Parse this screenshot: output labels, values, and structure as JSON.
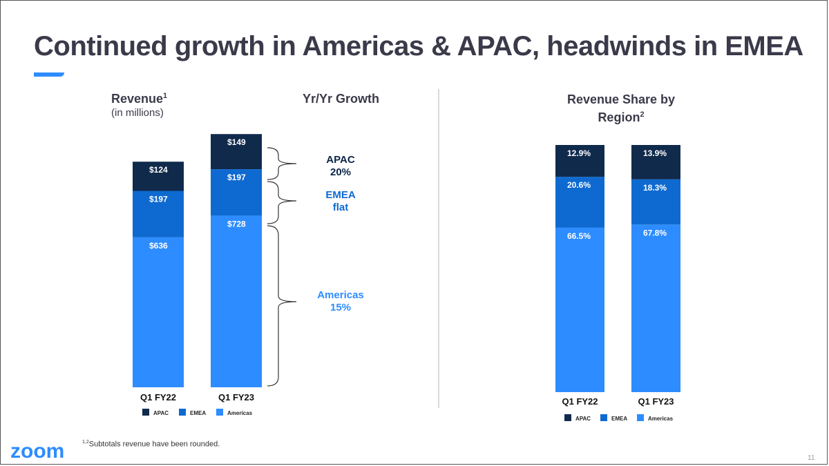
{
  "slide": {
    "title": "Continued growth in Americas & APAC, headwinds in EMEA",
    "page_number": "11",
    "logo_text": "zoom",
    "footnote_sup": "1,2",
    "footnote_text": "Subtotals revenue have been rounded."
  },
  "colors": {
    "apac": "#102a4c",
    "emea": "#0e6ad1",
    "americas": "#2d8cff",
    "growth_dark": "#0b2447",
    "growth_mid": "#0e6ad1",
    "growth_light": "#2d8cff"
  },
  "headers": {
    "revenue": "Revenue",
    "revenue_sup": "1",
    "revenue_sub": "(in millions)",
    "growth": "Yr/Yr Growth",
    "share_line1": "Revenue Share by",
    "share_line2": "Region",
    "share_sup": "2"
  },
  "growth_labels": {
    "apac_name": "APAC",
    "apac_value": "20%",
    "emea_name": "EMEA",
    "emea_value": "flat",
    "americas_name": "Americas",
    "americas_value": "15%"
  },
  "chart_data": [
    {
      "type": "bar",
      "stacked": true,
      "title": "Revenue (in millions)",
      "categories": [
        "Q1 FY22",
        "Q1 FY23"
      ],
      "series": [
        {
          "name": "Americas",
          "values": [
            636,
            728
          ],
          "labels": [
            "$636",
            "$728"
          ]
        },
        {
          "name": "EMEA",
          "values": [
            197,
            197
          ],
          "labels": [
            "$197",
            "$197"
          ]
        },
        {
          "name": "APAC",
          "values": [
            124,
            149
          ],
          "labels": [
            "$124",
            "$149"
          ]
        }
      ],
      "legend": [
        "APAC",
        "EMEA",
        "Americas"
      ],
      "legend_position": "bottom"
    },
    {
      "type": "bar",
      "stacked": true,
      "title": "Revenue Share by Region",
      "categories": [
        "Q1 FY22",
        "Q1 FY23"
      ],
      "series": [
        {
          "name": "Americas",
          "values": [
            66.5,
            67.8
          ],
          "labels": [
            "66.5%",
            "67.8%"
          ]
        },
        {
          "name": "EMEA",
          "values": [
            20.6,
            18.3
          ],
          "labels": [
            "20.6%",
            "18.3%"
          ]
        },
        {
          "name": "APAC",
          "values": [
            12.9,
            13.9
          ],
          "labels": [
            "12.9%",
            "13.9%"
          ]
        }
      ],
      "legend": [
        "APAC",
        "EMEA",
        "Americas"
      ],
      "legend_position": "bottom"
    }
  ]
}
